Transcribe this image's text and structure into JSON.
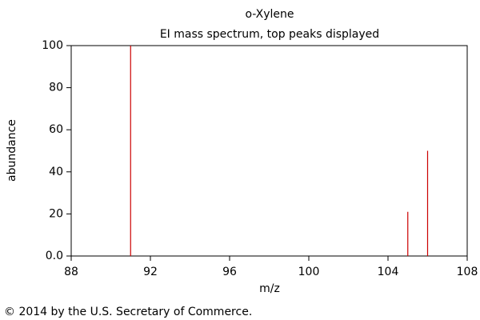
{
  "chart_data": {
    "type": "stem",
    "title": "o-Xylene",
    "subtitle": "EI mass spectrum, top peaks displayed",
    "xlabel": "m/z",
    "ylabel": "abundance",
    "x": [
      91,
      105,
      106
    ],
    "values": [
      100,
      21,
      50
    ],
    "color": "#cc0000",
    "xlim": [
      88,
      108
    ],
    "xticks": [
      88,
      92,
      96,
      100,
      104,
      108
    ],
    "ylim": [
      0,
      100
    ],
    "yticks": [
      {
        "value": 0,
        "label": "0.0"
      },
      20,
      40,
      60,
      80,
      100
    ],
    "footer": "© 2014 by the U.S. Secretary of Commerce."
  }
}
